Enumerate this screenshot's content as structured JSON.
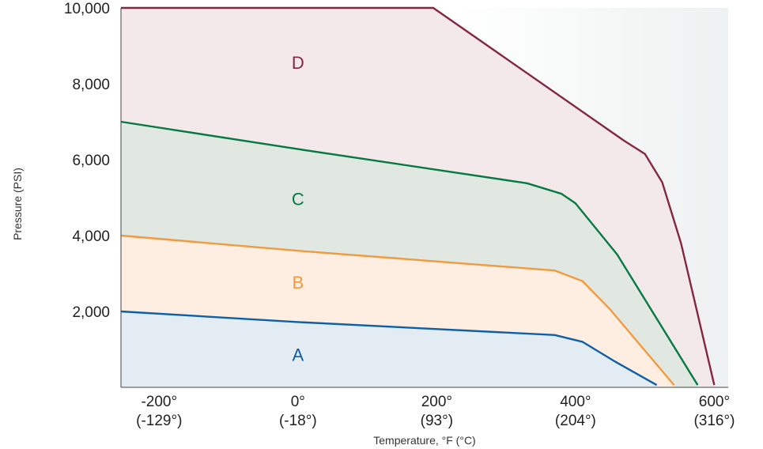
{
  "chart_data": {
    "type": "area",
    "title": "",
    "xlabel": "Temperature, °F (°C)",
    "ylabel": "Pressure (PSI)",
    "xlim": [
      -255,
      620
    ],
    "ylim": [
      0,
      10000
    ],
    "x_ticks": [
      {
        "value": -200,
        "label": "-200°",
        "sublabel": "(-129°)"
      },
      {
        "value": 0,
        "label": "0°",
        "sublabel": "(-18°)"
      },
      {
        "value": 200,
        "label": "200°",
        "sublabel": "(93°)"
      },
      {
        "value": 400,
        "label": "400°",
        "sublabel": "(204°)"
      },
      {
        "value": 600,
        "label": "600°",
        "sublabel": "(316°)"
      }
    ],
    "y_ticks": [
      {
        "value": 2000,
        "label": "2,000"
      },
      {
        "value": 4000,
        "label": "4,000"
      },
      {
        "value": 6000,
        "label": "6,000"
      },
      {
        "value": 8000,
        "label": "8,000"
      },
      {
        "value": 10000,
        "label": "10,000"
      }
    ],
    "grid": false,
    "background_color": "#f1f3f3",
    "series": [
      {
        "name": "A",
        "color": "#0f5ea8",
        "fill": "#e4ecf3",
        "label_at": {
          "x": 0,
          "y": 700
        },
        "points": [
          [
            -255,
            2000
          ],
          [
            0,
            1720
          ],
          [
            370,
            1380
          ],
          [
            410,
            1200
          ],
          [
            455,
            700
          ],
          [
            517,
            60
          ]
        ]
      },
      {
        "name": "B",
        "color": "#f29a3f",
        "fill": "#fdeee1",
        "label_at": {
          "x": 0,
          "y": 2600
        },
        "points": [
          [
            -255,
            4000
          ],
          [
            0,
            3600
          ],
          [
            370,
            3080
          ],
          [
            410,
            2800
          ],
          [
            450,
            2050
          ],
          [
            542,
            60
          ]
        ]
      },
      {
        "name": "C",
        "color": "#067a42",
        "fill": "#e1e8e1",
        "label_at": {
          "x": 0,
          "y": 4800
        },
        "points": [
          [
            -255,
            7000
          ],
          [
            0,
            6280
          ],
          [
            330,
            5380
          ],
          [
            380,
            5100
          ],
          [
            400,
            4850
          ],
          [
            460,
            3500
          ],
          [
            576,
            60
          ]
        ]
      },
      {
        "name": "D",
        "color": "#832741",
        "fill": "#f4e9ea",
        "label_at": {
          "x": 0,
          "y": 8400
        },
        "points": [
          [
            -255,
            10000
          ],
          [
            195,
            10000
          ],
          [
            470,
            6500
          ],
          [
            500,
            6150
          ],
          [
            525,
            5400
          ],
          [
            552,
            3800
          ],
          [
            600,
            60
          ]
        ]
      }
    ]
  }
}
